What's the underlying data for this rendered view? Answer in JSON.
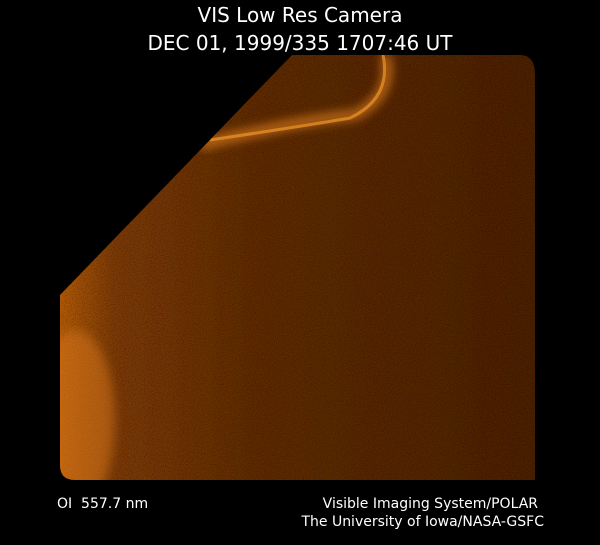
{
  "header": {
    "title": "VIS Low Res Camera",
    "timestamp": "DEC 01, 1999/335 1707:46 UT"
  },
  "footer": {
    "wavelength": "OI  557.7 nm",
    "instrument": "Visible Imaging System/POLAR",
    "institution": "The University of Iowa/NASA-GSFC"
  }
}
